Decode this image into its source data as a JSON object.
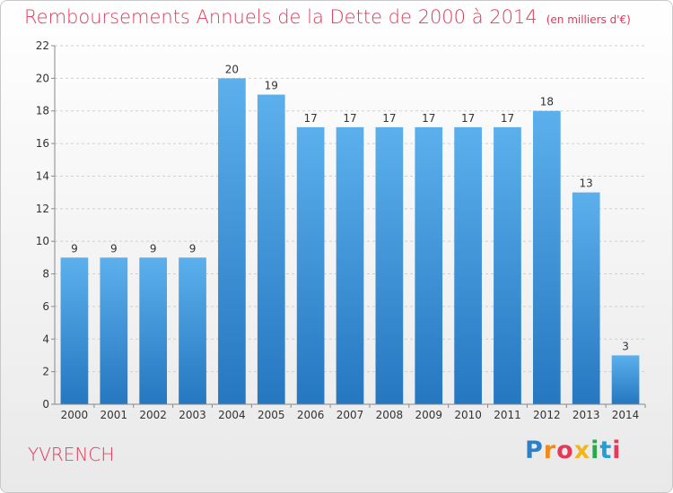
{
  "title": "Remboursements Annuels de la Dette de 2000 à 2014",
  "unit": "(en milliers d'€)",
  "commune": "YVRENCH",
  "logo": {
    "text": "Proxiti",
    "letter_colors": [
      "#2f7fc8",
      "#f08a1c",
      "#e23a5a",
      "#f2b51a",
      "#2aa84a",
      "#1fa0d8",
      "#e23a5a"
    ]
  },
  "colors": {
    "title": "#e0395a",
    "bar_light": "#5bb0ec",
    "bar_dark": "#2577c0",
    "grid": "#cfcfcf"
  },
  "chart_data": {
    "type": "bar",
    "categories": [
      "2000",
      "2001",
      "2002",
      "2003",
      "2004",
      "2005",
      "2006",
      "2007",
      "2008",
      "2009",
      "2010",
      "2011",
      "2012",
      "2013",
      "2014"
    ],
    "values": [
      9,
      9,
      9,
      9,
      20,
      19,
      17,
      17,
      17,
      17,
      17,
      17,
      18,
      13,
      3
    ],
    "ylim": [
      0,
      22
    ],
    "yticks": [
      0,
      2,
      4,
      6,
      8,
      10,
      12,
      14,
      16,
      18,
      20,
      22
    ],
    "grid": true,
    "data_labels": true
  }
}
